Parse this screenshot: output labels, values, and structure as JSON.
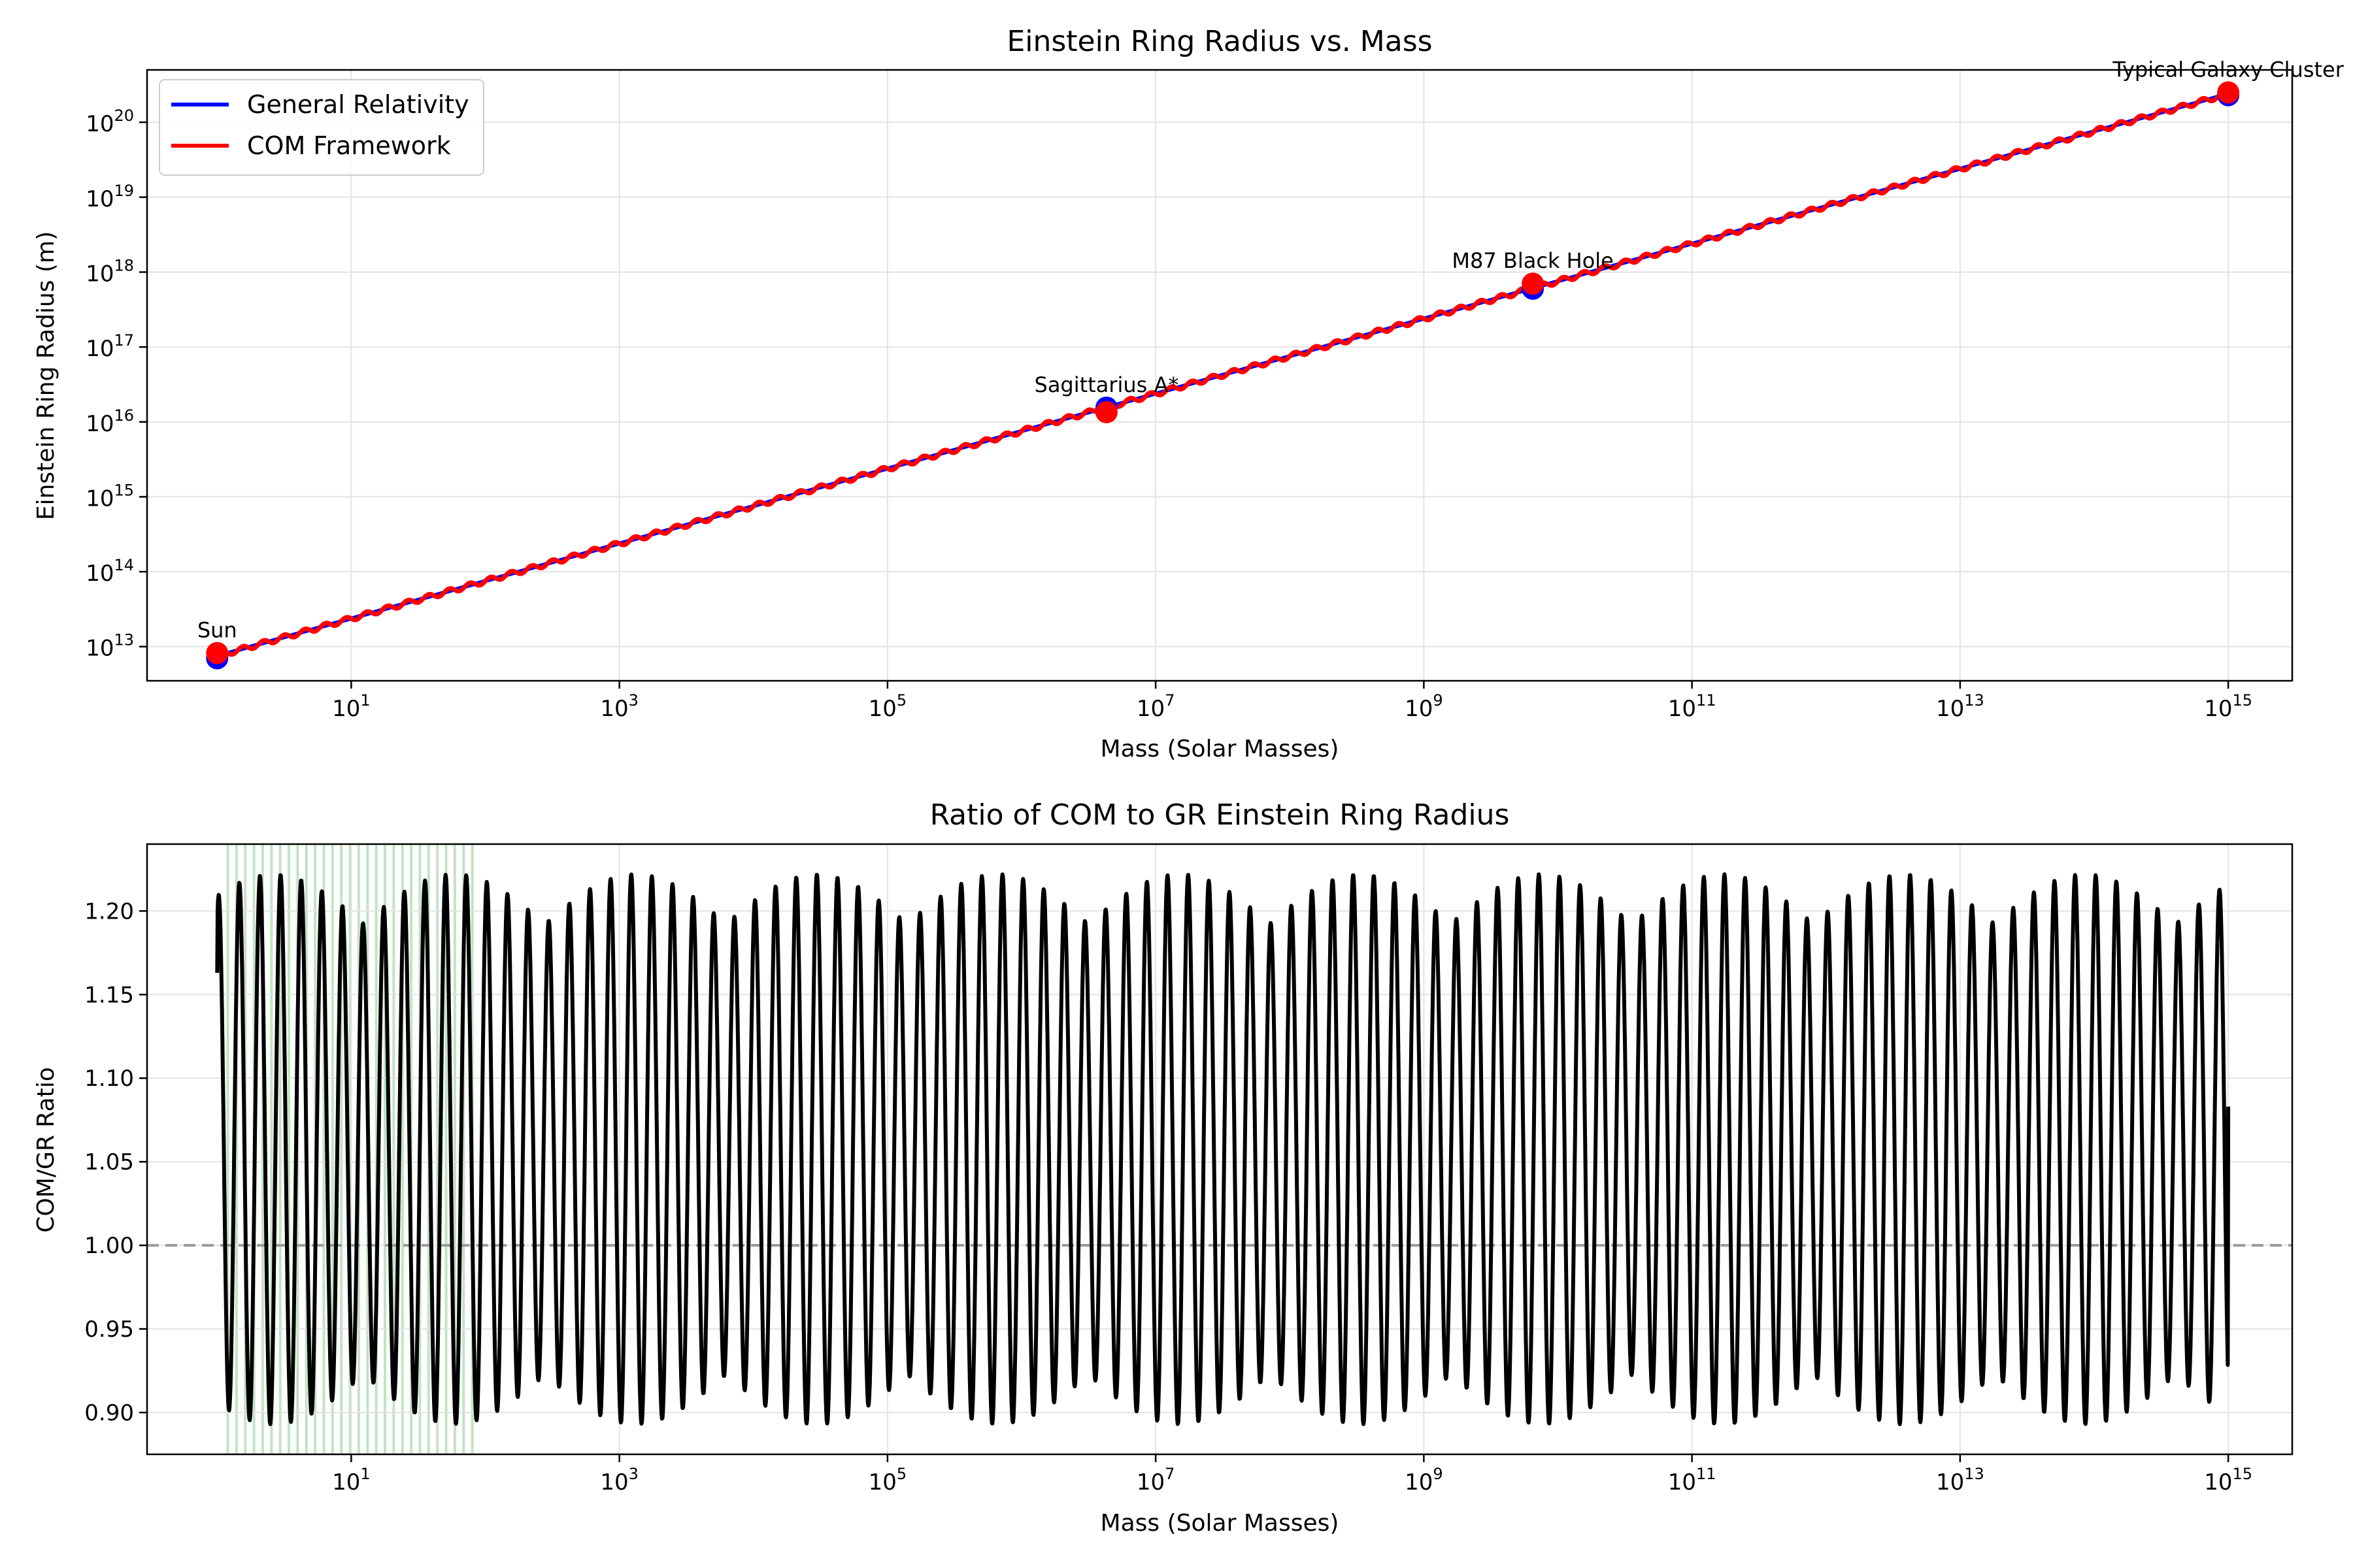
{
  "chart_data": [
    {
      "type": "line",
      "title": "Einstein Ring Radius vs. Mass",
      "xlabel": "Mass (Solar Masses)",
      "ylabel": "Einstein Ring Radius (m)",
      "xscale": "log",
      "yscale": "log",
      "xlim": [
        0.3,
        3000000000000000.0
      ],
      "ylim": [
        3500000000000.0,
        5e+20
      ],
      "x_ticks": [
        {
          "base": "10",
          "exp": "1",
          "value": 10
        },
        {
          "base": "10",
          "exp": "3",
          "value": 1000
        },
        {
          "base": "10",
          "exp": "5",
          "value": 100000
        },
        {
          "base": "10",
          "exp": "7",
          "value": 10000000.0
        },
        {
          "base": "10",
          "exp": "9",
          "value": 1000000000.0
        },
        {
          "base": "10",
          "exp": "11",
          "value": 100000000000.0
        },
        {
          "base": "10",
          "exp": "13",
          "value": 10000000000000.0
        },
        {
          "base": "10",
          "exp": "15",
          "value": 1000000000000000.0
        }
      ],
      "y_ticks": [
        {
          "base": "10",
          "exp": "13",
          "value": 10000000000000.0
        },
        {
          "base": "10",
          "exp": "14",
          "value": 100000000000000.0
        },
        {
          "base": "10",
          "exp": "15",
          "value": 1000000000000000.0
        },
        {
          "base": "10",
          "exp": "16",
          "value": 1e+16
        },
        {
          "base": "10",
          "exp": "17",
          "value": 1e+17
        },
        {
          "base": "10",
          "exp": "18",
          "value": 1e+18
        },
        {
          "base": "10",
          "exp": "19",
          "value": 1e+19
        },
        {
          "base": "10",
          "exp": "20",
          "value": 1e+20
        }
      ],
      "grid": true,
      "legend_position": "top-left",
      "series": [
        {
          "name": "General Relativity",
          "color": "#0000ff",
          "x": [
            1,
            1000000000000000.0
          ],
          "y": [
            7500000000000.0,
            2.4e+20
          ]
        },
        {
          "name": "COM Framework",
          "color": "#ff0000",
          "x": [
            1,
            1000000000000000.0
          ],
          "y": [
            7500000000000.0,
            2.4e+20
          ],
          "oscillation": "small periodic ripple around the GR line"
        }
      ],
      "markers": [
        {
          "label": "Sun",
          "x": 1,
          "gr": 7000000000000.0,
          "com": 8200000000000.0
        },
        {
          "label": "Sagittarius A*",
          "x": 4300000.0,
          "gr": 1.55e+16,
          "com": 1.35e+16
        },
        {
          "label": "M87 Black Hole",
          "x": 6500000000.0,
          "gr": 6e+17,
          "com": 7e+17
        },
        {
          "label": "Typical Galaxy Cluster",
          "x": 1000000000000000.0,
          "gr": 2.3e+20,
          "com": 2.5e+20
        }
      ]
    },
    {
      "type": "line",
      "title": "Ratio of COM to GR Einstein Ring Radius",
      "xlabel": "Mass (Solar Masses)",
      "ylabel": "COM/GR Ratio",
      "xscale": "log",
      "xlim": [
        0.3,
        3000000000000000.0
      ],
      "ylim": [
        0.875,
        1.24
      ],
      "x_ticks": [
        {
          "base": "10",
          "exp": "1",
          "value": 10
        },
        {
          "base": "10",
          "exp": "3",
          "value": 1000
        },
        {
          "base": "10",
          "exp": "5",
          "value": 100000
        },
        {
          "base": "10",
          "exp": "7",
          "value": 10000000.0
        },
        {
          "base": "10",
          "exp": "9",
          "value": 1000000000.0
        },
        {
          "base": "10",
          "exp": "11",
          "value": 100000000000.0
        },
        {
          "base": "10",
          "exp": "13",
          "value": 10000000000000.0
        },
        {
          "base": "10",
          "exp": "15",
          "value": 1000000000000000.0
        }
      ],
      "y_ticks": [
        {
          "label": "0.90",
          "value": 0.9
        },
        {
          "label": "0.95",
          "value": 0.95
        },
        {
          "label": "1.00",
          "value": 1.0
        },
        {
          "label": "1.05",
          "value": 1.05
        },
        {
          "label": "1.10",
          "value": 1.1
        },
        {
          "label": "1.15",
          "value": 1.15
        },
        {
          "label": "1.20",
          "value": 1.2
        }
      ],
      "grid": true,
      "reference_line": {
        "y": 1.0,
        "style": "dashed",
        "color": "#999999"
      },
      "shaded_range": {
        "x": [
          1.2,
          80
        ],
        "color": "#a8d8a8"
      },
      "series": [
        {
          "color": "#000000",
          "x_range": [
            1,
            1000000000000000.0
          ],
          "start": 1.163,
          "end": 1.083,
          "min": 0.893,
          "max": 1.222,
          "oscillations_per_decade": 6.5,
          "description": "oscillates between about 0.89 and 1.22 across the full mass range"
        }
      ]
    }
  ]
}
